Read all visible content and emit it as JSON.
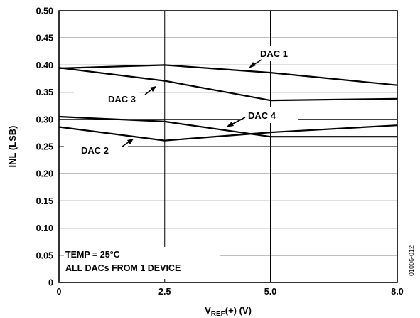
{
  "chart_data": {
    "type": "line",
    "xlabel": "V",
    "xlabel_sub": "REF",
    "xlabel_suffix": "(+) (V)",
    "ylabel": "INL (LSB)",
    "xlim": [
      0,
      8.0
    ],
    "ylim": [
      0,
      0.5
    ],
    "x_ticks": [
      0,
      2.5,
      5.0,
      8.0
    ],
    "x_tick_labels": [
      "0",
      "2.5",
      "5.0",
      "8.0"
    ],
    "y_ticks": [
      0,
      0.05,
      0.1,
      0.15,
      0.2,
      0.25,
      0.3,
      0.35,
      0.4,
      0.45,
      0.5
    ],
    "y_tick_labels": [
      "0",
      "0.05",
      "0.10",
      "0.15",
      "0.20",
      "0.25",
      "0.30",
      "0.35",
      "0.40",
      "0.45",
      "0.50"
    ],
    "grid": true,
    "series": [
      {
        "name": "DAC 1",
        "x": [
          0,
          2.5,
          5.0,
          8.0
        ],
        "y": [
          0.394,
          0.4,
          0.386,
          0.363
        ]
      },
      {
        "name": "DAC 3",
        "x": [
          0,
          2.5,
          5.0,
          8.0
        ],
        "y": [
          0.395,
          0.371,
          0.335,
          0.338
        ]
      },
      {
        "name": "DAC 4",
        "x": [
          0,
          2.5,
          5.0,
          8.0
        ],
        "y": [
          0.305,
          0.296,
          0.268,
          0.268
        ]
      },
      {
        "name": "DAC 2",
        "x": [
          0,
          2.5,
          5.0,
          8.0
        ],
        "y": [
          0.286,
          0.261,
          0.276,
          0.289
        ]
      }
    ],
    "annotations": [
      "TEMP = 25°C",
      "ALL DACs FROM 1 DEVICE"
    ],
    "figure_id": "01006-012"
  }
}
